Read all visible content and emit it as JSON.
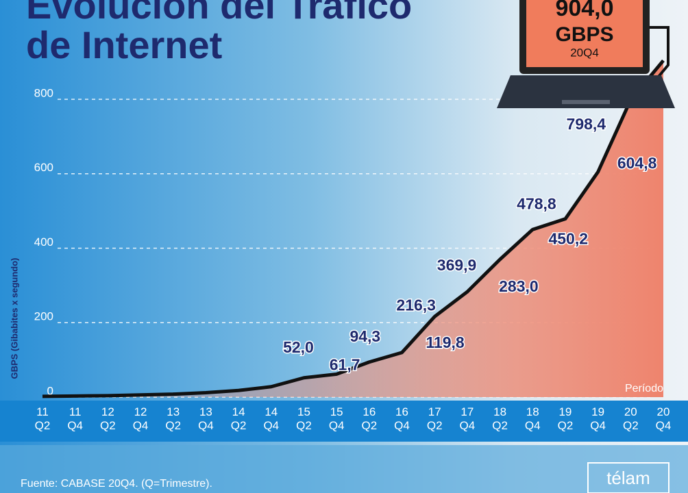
{
  "chart_data": {
    "type": "line",
    "title_lines": [
      "Evolución del Tráfico",
      "de Internet"
    ],
    "y_axis_label": "GBPS (Gibabites x segundo)",
    "x_axis_label": "Período",
    "categories": [
      "11\nQ2",
      "11\nQ4",
      "12\nQ2",
      "12\nQ4",
      "13\nQ2",
      "13\nQ4",
      "14\nQ2",
      "14\nQ4",
      "15\nQ2",
      "15\nQ4",
      "16\nQ2",
      "16\nQ4",
      "17\nQ2",
      "17\nQ4",
      "18\nQ2",
      "18\nQ4",
      "19\nQ2",
      "19\nQ4",
      "20\nQ2",
      "20\nQ4"
    ],
    "values": [
      2,
      3,
      4,
      6,
      8,
      12,
      18,
      28,
      52.0,
      61.7,
      94.3,
      119.8,
      216.3,
      283.0,
      369.9,
      450.2,
      478.8,
      604.8,
      798.4,
      904.0
    ],
    "value_labels": [
      null,
      null,
      null,
      null,
      null,
      null,
      null,
      null,
      "52,0",
      "61,7",
      "94,3",
      "119,8",
      "216,3",
      "283,0",
      "369,9",
      "450,2",
      "478,8",
      "604,8",
      "798,4",
      "904,0"
    ],
    "highlight_unit": "GBPS",
    "highlight_period": "20Q4",
    "color": "#111111",
    "ylim": [
      0,
      800
    ],
    "yticks": [
      0,
      200,
      400,
      600,
      800
    ],
    "grid": true,
    "source": "Fuente: CABASE 20Q4. (Q=Trimestre).",
    "logo": "télam"
  }
}
